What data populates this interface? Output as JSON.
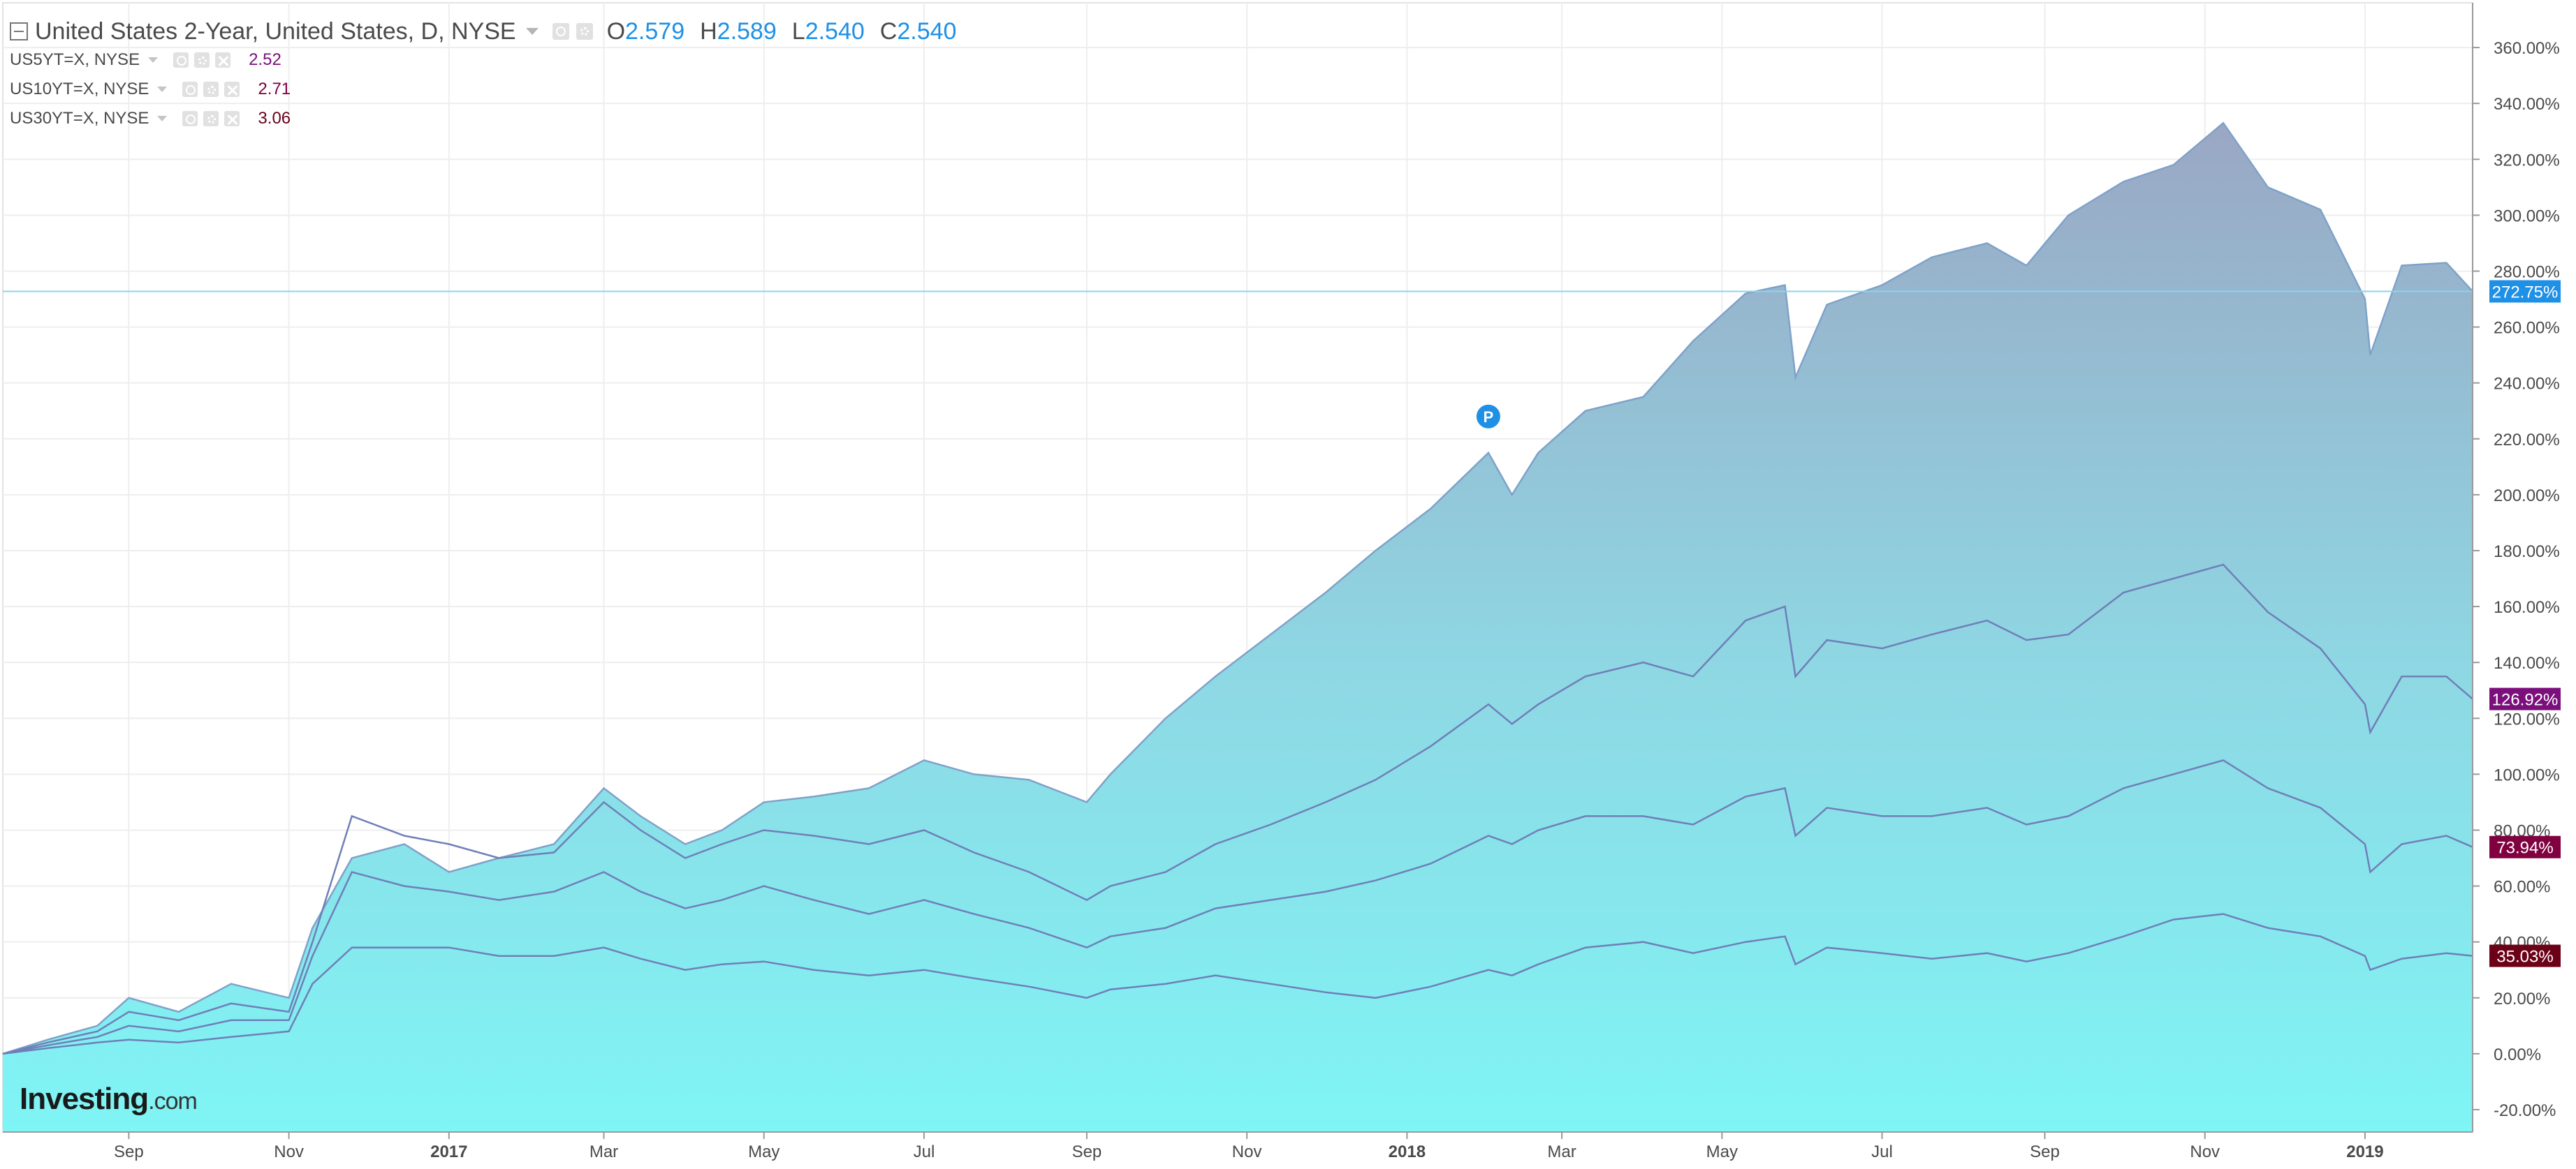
{
  "main_series": {
    "title": "United States 2-Year, United States, D, NYSE",
    "ohlc": [
      {
        "key": "O",
        "value": "2.579"
      },
      {
        "key": "H",
        "value": "2.589"
      },
      {
        "key": "L",
        "value": "2.540"
      },
      {
        "key": "C",
        "value": "2.540"
      }
    ],
    "color": "#1e90e6"
  },
  "comparisons": [
    {
      "label": "US5YT=X, NYSE",
      "value": "2.52",
      "color": "#7b0f7b"
    },
    {
      "label": "US10YT=X, NYSE",
      "value": "2.71",
      "color": "#800040"
    },
    {
      "label": "US30YT=X, NYSE",
      "value": "3.06",
      "color": "#6b0017"
    }
  ],
  "logo": {
    "brand": "Investing",
    "suffix": ".com"
  },
  "colors": {
    "area_top": "#9aa7c4",
    "area_mid": "#8ed8e4",
    "area_bottom": "#7ff5f5",
    "line": "#6f7fb8",
    "axis_text": "#4a4a4a",
    "grid": "#eeeeee",
    "current_line": "#8cd3ec"
  },
  "chart_data": {
    "type": "area",
    "x_tick_labels": [
      "Sep",
      "Nov",
      "2017",
      "Mar",
      "May",
      "Jul",
      "Sep",
      "Nov",
      "2018",
      "Mar",
      "May",
      "Jul",
      "Sep",
      "Nov",
      "2019"
    ],
    "y_tick_labels": [
      "-20.00%",
      "0.00%",
      "20.00%",
      "40.00%",
      "60.00%",
      "80.00%",
      "100.00%",
      "120.00%",
      "140.00%",
      "160.00%",
      "180.00%",
      "200.00%",
      "220.00%",
      "240.00%",
      "260.00%",
      "280.00%",
      "300.00%",
      "320.00%",
      "340.00%",
      "360.00%"
    ],
    "y_range": [
      -28,
      376
    ],
    "y_ticks": [
      -20,
      0,
      20,
      40,
      60,
      80,
      100,
      120,
      140,
      160,
      180,
      200,
      220,
      240,
      260,
      280,
      300,
      320,
      340,
      360
    ],
    "x_range": [
      "2016-07-15",
      "2019-02-11"
    ],
    "x_ticks": [
      "2016-09-01",
      "2016-11-01",
      "2017-01-01",
      "2017-03-01",
      "2017-05-01",
      "2017-07-01",
      "2017-09-01",
      "2017-11-01",
      "2018-01-01",
      "2018-03-01",
      "2018-05-01",
      "2018-07-01",
      "2018-09-01",
      "2018-11-01",
      "2019-01-01"
    ],
    "current_level": 272.75,
    "series": [
      {
        "name": "United States 2-Year",
        "last_label": "272.75%",
        "label_color": "#1e90e6",
        "x": [
          "2016-07-15",
          "2016-08-01",
          "2016-08-20",
          "2016-09-01",
          "2016-09-20",
          "2016-10-10",
          "2016-11-01",
          "2016-11-10",
          "2016-11-25",
          "2016-12-15",
          "2017-01-01",
          "2017-01-20",
          "2017-02-10",
          "2017-03-01",
          "2017-03-15",
          "2017-04-01",
          "2017-04-15",
          "2017-05-01",
          "2017-05-20",
          "2017-06-10",
          "2017-07-01",
          "2017-07-20",
          "2017-08-10",
          "2017-09-01",
          "2017-09-10",
          "2017-10-01",
          "2017-10-20",
          "2017-11-10",
          "2017-12-01",
          "2017-12-20",
          "2018-01-10",
          "2018-02-01",
          "2018-02-10",
          "2018-02-20",
          "2018-03-10",
          "2018-04-01",
          "2018-04-20",
          "2018-05-10",
          "2018-05-25",
          "2018-05-29",
          "2018-06-10",
          "2018-07-01",
          "2018-07-20",
          "2018-08-10",
          "2018-08-25",
          "2018-09-10",
          "2018-10-01",
          "2018-10-20",
          "2018-11-08",
          "2018-11-25",
          "2018-12-15",
          "2019-01-01",
          "2019-01-03",
          "2019-01-15",
          "2019-02-01",
          "2019-02-11"
        ],
        "y": [
          0,
          5,
          10,
          20,
          15,
          25,
          20,
          45,
          70,
          75,
          65,
          70,
          75,
          95,
          85,
          75,
          80,
          90,
          92,
          95,
          105,
          100,
          98,
          90,
          100,
          120,
          135,
          150,
          165,
          180,
          195,
          215,
          200,
          215,
          230,
          235,
          255,
          272,
          275,
          242,
          268,
          275,
          285,
          290,
          282,
          300,
          312,
          318,
          333,
          310,
          302,
          270,
          250,
          282,
          283,
          272.75
        ]
      },
      {
        "name": "US5YT=X",
        "last_label": "126.92%",
        "label_color": "#7b0f7b",
        "x": [
          "2016-07-15",
          "2016-08-01",
          "2016-08-20",
          "2016-09-01",
          "2016-09-20",
          "2016-10-10",
          "2016-11-01",
          "2016-11-10",
          "2016-11-25",
          "2016-12-15",
          "2017-01-01",
          "2017-01-20",
          "2017-02-10",
          "2017-03-01",
          "2017-03-15",
          "2017-04-01",
          "2017-04-15",
          "2017-05-01",
          "2017-05-20",
          "2017-06-10",
          "2017-07-01",
          "2017-07-20",
          "2017-08-10",
          "2017-09-01",
          "2017-09-10",
          "2017-10-01",
          "2017-10-20",
          "2017-11-10",
          "2017-12-01",
          "2017-12-20",
          "2018-01-10",
          "2018-02-01",
          "2018-02-10",
          "2018-02-20",
          "2018-03-10",
          "2018-04-01",
          "2018-04-20",
          "2018-05-10",
          "2018-05-25",
          "2018-05-29",
          "2018-06-10",
          "2018-07-01",
          "2018-07-20",
          "2018-08-10",
          "2018-08-25",
          "2018-09-10",
          "2018-10-01",
          "2018-10-20",
          "2018-11-08",
          "2018-11-25",
          "2018-12-15",
          "2019-01-01",
          "2019-01-03",
          "2019-01-15",
          "2019-02-01",
          "2019-02-11"
        ],
        "y": [
          0,
          4,
          8,
          15,
          12,
          18,
          15,
          40,
          85,
          78,
          75,
          70,
          72,
          90,
          80,
          70,
          75,
          80,
          78,
          75,
          80,
          72,
          65,
          55,
          60,
          65,
          75,
          82,
          90,
          98,
          110,
          125,
          118,
          125,
          135,
          140,
          135,
          155,
          160,
          135,
          148,
          145,
          150,
          155,
          148,
          150,
          165,
          170,
          175,
          158,
          145,
          125,
          115,
          135,
          135,
          126.92
        ]
      },
      {
        "name": "US10YT=X",
        "last_label": "73.94%",
        "label_color": "#800040",
        "x": [
          "2016-07-15",
          "2016-08-01",
          "2016-08-20",
          "2016-09-01",
          "2016-09-20",
          "2016-10-10",
          "2016-11-01",
          "2016-11-10",
          "2016-11-25",
          "2016-12-15",
          "2017-01-01",
          "2017-01-20",
          "2017-02-10",
          "2017-03-01",
          "2017-03-15",
          "2017-04-01",
          "2017-04-15",
          "2017-05-01",
          "2017-05-20",
          "2017-06-10",
          "2017-07-01",
          "2017-07-20",
          "2017-08-10",
          "2017-09-01",
          "2017-09-10",
          "2017-10-01",
          "2017-10-20",
          "2017-11-10",
          "2017-12-01",
          "2017-12-20",
          "2018-01-10",
          "2018-02-01",
          "2018-02-10",
          "2018-02-20",
          "2018-03-10",
          "2018-04-01",
          "2018-04-20",
          "2018-05-10",
          "2018-05-25",
          "2018-05-29",
          "2018-06-10",
          "2018-07-01",
          "2018-07-20",
          "2018-08-10",
          "2018-08-25",
          "2018-09-10",
          "2018-10-01",
          "2018-10-20",
          "2018-11-08",
          "2018-11-25",
          "2018-12-15",
          "2019-01-01",
          "2019-01-03",
          "2019-01-15",
          "2019-02-01",
          "2019-02-11"
        ],
        "y": [
          0,
          3,
          6,
          10,
          8,
          12,
          12,
          35,
          65,
          60,
          58,
          55,
          58,
          65,
          58,
          52,
          55,
          60,
          55,
          50,
          55,
          50,
          45,
          38,
          42,
          45,
          52,
          55,
          58,
          62,
          68,
          78,
          75,
          80,
          85,
          85,
          82,
          92,
          95,
          78,
          88,
          85,
          85,
          88,
          82,
          85,
          95,
          100,
          105,
          95,
          88,
          75,
          65,
          75,
          78,
          73.94
        ]
      },
      {
        "name": "US30YT=X",
        "last_label": "35.03%",
        "label_color": "#6b0017",
        "x": [
          "2016-07-15",
          "2016-08-01",
          "2016-08-20",
          "2016-09-01",
          "2016-09-20",
          "2016-10-10",
          "2016-11-01",
          "2016-11-10",
          "2016-11-25",
          "2016-12-15",
          "2017-01-01",
          "2017-01-20",
          "2017-02-10",
          "2017-03-01",
          "2017-03-15",
          "2017-04-01",
          "2017-04-15",
          "2017-05-01",
          "2017-05-20",
          "2017-06-10",
          "2017-07-01",
          "2017-07-20",
          "2017-08-10",
          "2017-09-01",
          "2017-09-10",
          "2017-10-01",
          "2017-10-20",
          "2017-11-10",
          "2017-12-01",
          "2017-12-20",
          "2018-01-10",
          "2018-02-01",
          "2018-02-10",
          "2018-02-20",
          "2018-03-10",
          "2018-04-01",
          "2018-04-20",
          "2018-05-10",
          "2018-05-25",
          "2018-05-29",
          "2018-06-10",
          "2018-07-01",
          "2018-07-20",
          "2018-08-10",
          "2018-08-25",
          "2018-09-10",
          "2018-10-01",
          "2018-10-20",
          "2018-11-08",
          "2018-11-25",
          "2018-12-15",
          "2019-01-01",
          "2019-01-03",
          "2019-01-15",
          "2019-02-01",
          "2019-02-11"
        ],
        "y": [
          0,
          2,
          4,
          5,
          4,
          6,
          8,
          25,
          38,
          38,
          38,
          35,
          35,
          38,
          34,
          30,
          32,
          33,
          30,
          28,
          30,
          27,
          24,
          20,
          23,
          25,
          28,
          25,
          22,
          20,
          24,
          30,
          28,
          32,
          38,
          40,
          36,
          40,
          42,
          32,
          38,
          36,
          34,
          36,
          33,
          36,
          42,
          48,
          50,
          45,
          42,
          35,
          30,
          34,
          36,
          35.03
        ]
      }
    ]
  }
}
